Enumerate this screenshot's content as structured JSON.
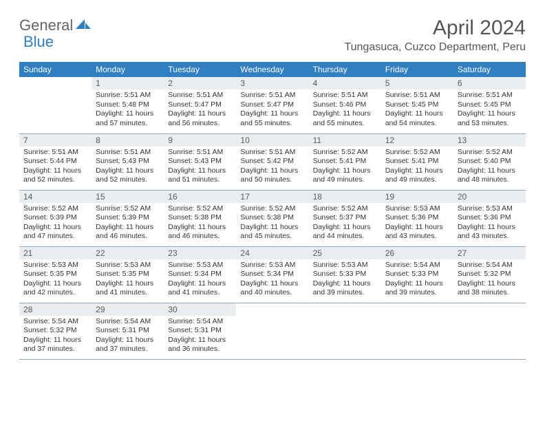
{
  "brand": {
    "word1": "General",
    "word2": "Blue"
  },
  "title": "April 2024",
  "location": "Tungasuca, Cuzco Department, Peru",
  "colors": {
    "header_bg": "#2f7fc2",
    "header_text": "#ffffff",
    "daynum_bg": "#e9edef",
    "row_border": "#8fa8b8",
    "text": "#333333",
    "title_text": "#555555"
  },
  "font": {
    "family": "Arial",
    "title_size": 30,
    "location_size": 16,
    "header_size": 12,
    "body_size": 10.5
  },
  "day_headers": [
    "Sunday",
    "Monday",
    "Tuesday",
    "Wednesday",
    "Thursday",
    "Friday",
    "Saturday"
  ],
  "weeks": [
    [
      {
        "num": "",
        "lines": []
      },
      {
        "num": "1",
        "lines": [
          "Sunrise: 5:51 AM",
          "Sunset: 5:48 PM",
          "Daylight: 11 hours",
          "and 57 minutes."
        ]
      },
      {
        "num": "2",
        "lines": [
          "Sunrise: 5:51 AM",
          "Sunset: 5:47 PM",
          "Daylight: 11 hours",
          "and 56 minutes."
        ]
      },
      {
        "num": "3",
        "lines": [
          "Sunrise: 5:51 AM",
          "Sunset: 5:47 PM",
          "Daylight: 11 hours",
          "and 55 minutes."
        ]
      },
      {
        "num": "4",
        "lines": [
          "Sunrise: 5:51 AM",
          "Sunset: 5:46 PM",
          "Daylight: 11 hours",
          "and 55 minutes."
        ]
      },
      {
        "num": "5",
        "lines": [
          "Sunrise: 5:51 AM",
          "Sunset: 5:45 PM",
          "Daylight: 11 hours",
          "and 54 minutes."
        ]
      },
      {
        "num": "6",
        "lines": [
          "Sunrise: 5:51 AM",
          "Sunset: 5:45 PM",
          "Daylight: 11 hours",
          "and 53 minutes."
        ]
      }
    ],
    [
      {
        "num": "7",
        "lines": [
          "Sunrise: 5:51 AM",
          "Sunset: 5:44 PM",
          "Daylight: 11 hours",
          "and 52 minutes."
        ]
      },
      {
        "num": "8",
        "lines": [
          "Sunrise: 5:51 AM",
          "Sunset: 5:43 PM",
          "Daylight: 11 hours",
          "and 52 minutes."
        ]
      },
      {
        "num": "9",
        "lines": [
          "Sunrise: 5:51 AM",
          "Sunset: 5:43 PM",
          "Daylight: 11 hours",
          "and 51 minutes."
        ]
      },
      {
        "num": "10",
        "lines": [
          "Sunrise: 5:51 AM",
          "Sunset: 5:42 PM",
          "Daylight: 11 hours",
          "and 50 minutes."
        ]
      },
      {
        "num": "11",
        "lines": [
          "Sunrise: 5:52 AM",
          "Sunset: 5:41 PM",
          "Daylight: 11 hours",
          "and 49 minutes."
        ]
      },
      {
        "num": "12",
        "lines": [
          "Sunrise: 5:52 AM",
          "Sunset: 5:41 PM",
          "Daylight: 11 hours",
          "and 49 minutes."
        ]
      },
      {
        "num": "13",
        "lines": [
          "Sunrise: 5:52 AM",
          "Sunset: 5:40 PM",
          "Daylight: 11 hours",
          "and 48 minutes."
        ]
      }
    ],
    [
      {
        "num": "14",
        "lines": [
          "Sunrise: 5:52 AM",
          "Sunset: 5:39 PM",
          "Daylight: 11 hours",
          "and 47 minutes."
        ]
      },
      {
        "num": "15",
        "lines": [
          "Sunrise: 5:52 AM",
          "Sunset: 5:39 PM",
          "Daylight: 11 hours",
          "and 46 minutes."
        ]
      },
      {
        "num": "16",
        "lines": [
          "Sunrise: 5:52 AM",
          "Sunset: 5:38 PM",
          "Daylight: 11 hours",
          "and 46 minutes."
        ]
      },
      {
        "num": "17",
        "lines": [
          "Sunrise: 5:52 AM",
          "Sunset: 5:38 PM",
          "Daylight: 11 hours",
          "and 45 minutes."
        ]
      },
      {
        "num": "18",
        "lines": [
          "Sunrise: 5:52 AM",
          "Sunset: 5:37 PM",
          "Daylight: 11 hours",
          "and 44 minutes."
        ]
      },
      {
        "num": "19",
        "lines": [
          "Sunrise: 5:53 AM",
          "Sunset: 5:36 PM",
          "Daylight: 11 hours",
          "and 43 minutes."
        ]
      },
      {
        "num": "20",
        "lines": [
          "Sunrise: 5:53 AM",
          "Sunset: 5:36 PM",
          "Daylight: 11 hours",
          "and 43 minutes."
        ]
      }
    ],
    [
      {
        "num": "21",
        "lines": [
          "Sunrise: 5:53 AM",
          "Sunset: 5:35 PM",
          "Daylight: 11 hours",
          "and 42 minutes."
        ]
      },
      {
        "num": "22",
        "lines": [
          "Sunrise: 5:53 AM",
          "Sunset: 5:35 PM",
          "Daylight: 11 hours",
          "and 41 minutes."
        ]
      },
      {
        "num": "23",
        "lines": [
          "Sunrise: 5:53 AM",
          "Sunset: 5:34 PM",
          "Daylight: 11 hours",
          "and 41 minutes."
        ]
      },
      {
        "num": "24",
        "lines": [
          "Sunrise: 5:53 AM",
          "Sunset: 5:34 PM",
          "Daylight: 11 hours",
          "and 40 minutes."
        ]
      },
      {
        "num": "25",
        "lines": [
          "Sunrise: 5:53 AM",
          "Sunset: 5:33 PM",
          "Daylight: 11 hours",
          "and 39 minutes."
        ]
      },
      {
        "num": "26",
        "lines": [
          "Sunrise: 5:54 AM",
          "Sunset: 5:33 PM",
          "Daylight: 11 hours",
          "and 39 minutes."
        ]
      },
      {
        "num": "27",
        "lines": [
          "Sunrise: 5:54 AM",
          "Sunset: 5:32 PM",
          "Daylight: 11 hours",
          "and 38 minutes."
        ]
      }
    ],
    [
      {
        "num": "28",
        "lines": [
          "Sunrise: 5:54 AM",
          "Sunset: 5:32 PM",
          "Daylight: 11 hours",
          "and 37 minutes."
        ]
      },
      {
        "num": "29",
        "lines": [
          "Sunrise: 5:54 AM",
          "Sunset: 5:31 PM",
          "Daylight: 11 hours",
          "and 37 minutes."
        ]
      },
      {
        "num": "30",
        "lines": [
          "Sunrise: 5:54 AM",
          "Sunset: 5:31 PM",
          "Daylight: 11 hours",
          "and 36 minutes."
        ]
      },
      {
        "num": "",
        "lines": []
      },
      {
        "num": "",
        "lines": []
      },
      {
        "num": "",
        "lines": []
      },
      {
        "num": "",
        "lines": []
      }
    ]
  ]
}
